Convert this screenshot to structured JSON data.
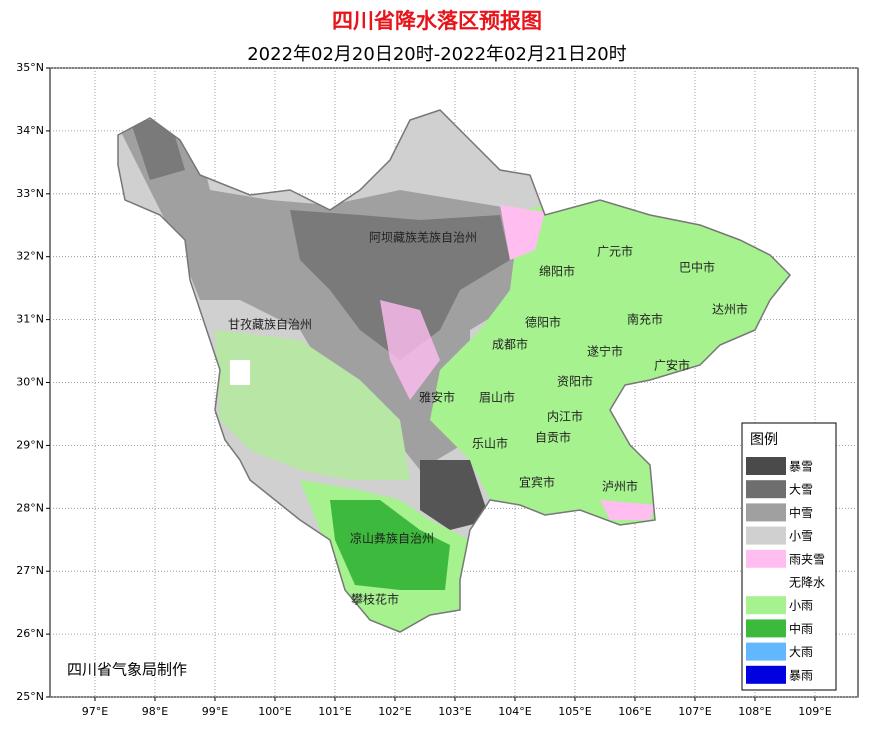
{
  "title": "四川省降水落区预报图",
  "subtitle": "2022年02月20日20时-2022年02月21日20时",
  "map": {
    "lon_ticks": [
      {
        "value": 97,
        "label": "97°E"
      },
      {
        "value": 98,
        "label": "98°E"
      },
      {
        "value": 99,
        "label": "99°E"
      },
      {
        "value": 100,
        "label": "100°E"
      },
      {
        "value": 101,
        "label": "101°E"
      },
      {
        "value": 102,
        "label": "102°E"
      },
      {
        "value": 103,
        "label": "103°E"
      },
      {
        "value": 104,
        "label": "104°E"
      },
      {
        "value": 105,
        "label": "105°E"
      },
      {
        "value": 106,
        "label": "106°E"
      },
      {
        "value": 107,
        "label": "107°E"
      },
      {
        "value": 108,
        "label": "108°E"
      },
      {
        "value": 109,
        "label": "109°E"
      }
    ],
    "lat_ticks": [
      {
        "value": 25,
        "label": "25°N"
      },
      {
        "value": 26,
        "label": "26°N"
      },
      {
        "value": 27,
        "label": "27°N"
      },
      {
        "value": 28,
        "label": "28°N"
      },
      {
        "value": 29,
        "label": "29°N"
      },
      {
        "value": 30,
        "label": "30°N"
      },
      {
        "value": 31,
        "label": "31°N"
      },
      {
        "value": 32,
        "label": "32°N"
      },
      {
        "value": 33,
        "label": "33°N"
      },
      {
        "value": 34,
        "label": "34°N"
      },
      {
        "value": 35,
        "label": "35°N"
      }
    ],
    "regions": [
      "阿坝藏族羌族自治州",
      "甘孜藏族自治州",
      "绵阳市",
      "广元市",
      "巴中市",
      "德阳市",
      "南充市",
      "达州市",
      "成都市",
      "遂宁市",
      "广安市",
      "资阳市",
      "雅安市",
      "眉山市",
      "内江市",
      "乐山市",
      "自贡市",
      "宜宾市",
      "泸州市",
      "凉山彝族自治州",
      "攀枝花市"
    ],
    "credit": "四川省气象局制作"
  },
  "legend": {
    "title": "图例",
    "items": [
      {
        "label": "暴雪",
        "color": "#4a4a4a"
      },
      {
        "label": "大雪",
        "color": "#6e6e6e"
      },
      {
        "label": "中雪",
        "color": "#a0a0a0"
      },
      {
        "label": "小雪",
        "color": "#d0d0d0"
      },
      {
        "label": "雨夹雪",
        "color": "#ffbdf0"
      },
      {
        "label": "无降水",
        "color": "#ffffff"
      },
      {
        "label": "小雨",
        "color": "#a6f28f"
      },
      {
        "label": "中雨",
        "color": "#3dba3d"
      },
      {
        "label": "大雨",
        "color": "#61b8ff"
      },
      {
        "label": "暴雨",
        "color": "#0000e1"
      }
    ]
  }
}
